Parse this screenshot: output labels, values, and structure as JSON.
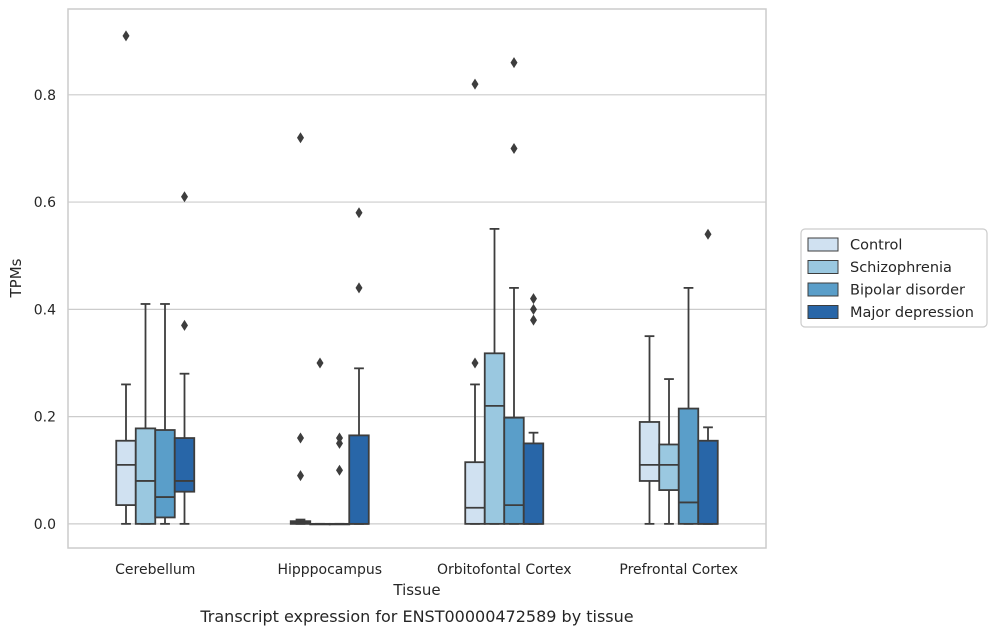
{
  "caption": "Transcript expression for ENST00000472589 by tissue",
  "chart_data": {
    "type": "boxplot",
    "title": "",
    "xlabel": "Tissue",
    "ylabel": "TPMs",
    "ylim": [
      -0.045,
      0.96
    ],
    "yticks": [
      0.0,
      0.2,
      0.4,
      0.6,
      0.8
    ],
    "ytick_labels": [
      "0.0",
      "0.2",
      "0.4",
      "0.6",
      "0.8"
    ],
    "grid": "horizontal",
    "legend_position": "right",
    "categories": [
      "Cerebellum",
      "Hipppocampus",
      "Orbitofontal Cortex",
      "Prefrontal Cortex"
    ],
    "series": [
      {
        "name": "Control",
        "color": "#d0e1f1",
        "boxes": [
          {
            "whislo": 0.0,
            "q1": 0.035,
            "med": 0.11,
            "q3": 0.155,
            "whishi": 0.26,
            "fliers": [
              0.91
            ]
          },
          {
            "whislo": 0.0,
            "q1": 0.0,
            "med": 0.003,
            "q3": 0.005,
            "whishi": 0.008,
            "fliers": [
              0.72,
              0.16,
              0.09
            ]
          },
          {
            "whislo": 0.0,
            "q1": 0.0,
            "med": 0.03,
            "q3": 0.115,
            "whishi": 0.26,
            "fliers": [
              0.82,
              0.3
            ]
          },
          {
            "whislo": 0.0,
            "q1": 0.08,
            "med": 0.11,
            "q3": 0.19,
            "whishi": 0.35,
            "fliers": []
          }
        ]
      },
      {
        "name": "Schizophrenia",
        "color": "#9ac8e0",
        "boxes": [
          {
            "whislo": 0.0,
            "q1": 0.0,
            "med": 0.08,
            "q3": 0.178,
            "whishi": 0.41,
            "fliers": []
          },
          {
            "whislo": 0.0,
            "q1": 0.0,
            "med": 0.0,
            "q3": 0.0,
            "whishi": 0.0,
            "fliers": [
              0.3
            ]
          },
          {
            "whislo": 0.0,
            "q1": 0.0,
            "med": 0.22,
            "q3": 0.318,
            "whishi": 0.55,
            "fliers": []
          },
          {
            "whislo": 0.0,
            "q1": 0.063,
            "med": 0.11,
            "q3": 0.148,
            "whishi": 0.27,
            "fliers": []
          }
        ]
      },
      {
        "name": "Bipolar disorder",
        "color": "#5a9ec9",
        "boxes": [
          {
            "whislo": 0.0,
            "q1": 0.012,
            "med": 0.05,
            "q3": 0.175,
            "whishi": 0.41,
            "fliers": []
          },
          {
            "whislo": 0.0,
            "q1": 0.0,
            "med": 0.0,
            "q3": 0.0,
            "whishi": 0.0,
            "fliers": [
              0.16,
              0.15,
              0.1
            ]
          },
          {
            "whislo": 0.0,
            "q1": 0.0,
            "med": 0.035,
            "q3": 0.198,
            "whishi": 0.44,
            "fliers": [
              0.86,
              0.7
            ]
          },
          {
            "whislo": 0.0,
            "q1": 0.0,
            "med": 0.04,
            "q3": 0.215,
            "whishi": 0.44,
            "fliers": []
          }
        ]
      },
      {
        "name": "Major depression",
        "color": "#2866a8",
        "boxes": [
          {
            "whislo": 0.0,
            "q1": 0.06,
            "med": 0.08,
            "q3": 0.16,
            "whishi": 0.28,
            "fliers": [
              0.61,
              0.37
            ]
          },
          {
            "whislo": 0.0,
            "q1": 0.0,
            "med": 0.0,
            "q3": 0.165,
            "whishi": 0.29,
            "fliers": [
              0.58,
              0.44
            ]
          },
          {
            "whislo": 0.0,
            "q1": 0.0,
            "med": 0.0,
            "q3": 0.15,
            "whishi": 0.17,
            "fliers": [
              0.42,
              0.4,
              0.38
            ]
          },
          {
            "whislo": 0.0,
            "q1": 0.0,
            "med": 0.0,
            "q3": 0.155,
            "whishi": 0.18,
            "fliers": [
              0.54
            ]
          }
        ]
      }
    ]
  }
}
